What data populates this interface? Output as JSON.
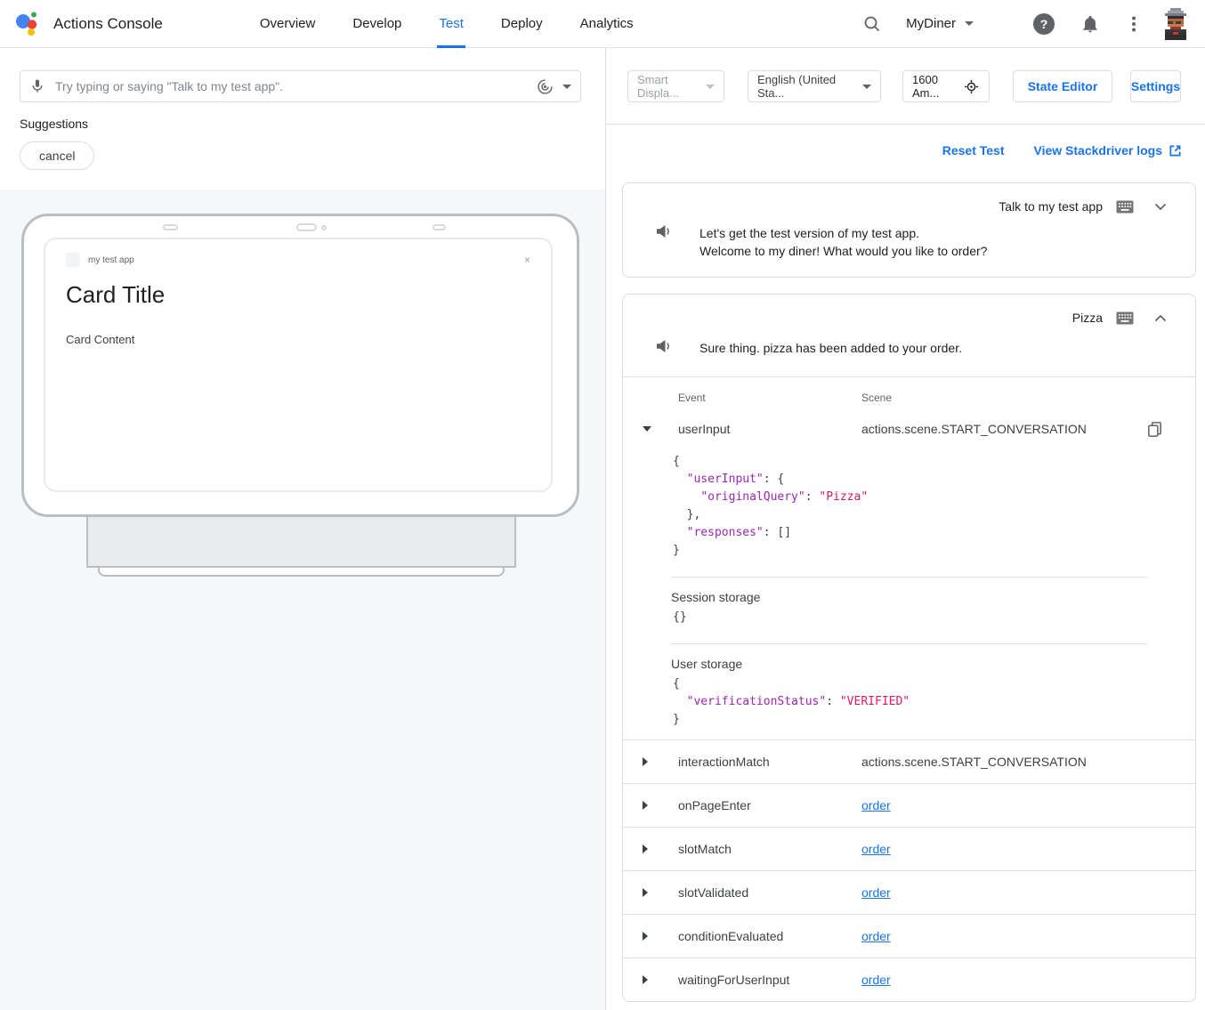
{
  "header": {
    "brand": "Actions Console",
    "tabs": [
      {
        "label": "Overview",
        "active": false
      },
      {
        "label": "Develop",
        "active": false
      },
      {
        "label": "Test",
        "active": true
      },
      {
        "label": "Deploy",
        "active": false
      },
      {
        "label": "Analytics",
        "active": false
      }
    ],
    "project": "MyDiner"
  },
  "colors": {
    "accent": "#1a73e8",
    "json_key": "#9c27b0",
    "json_value": "#d81b60"
  },
  "simulator": {
    "input_placeholder": "Try typing or saying \"Talk to my test app\".",
    "suggestions_label": "Suggestions",
    "suggestion_chips": [
      "cancel"
    ],
    "device": {
      "app_name": "my test app",
      "close": "×",
      "card_title": "Card Title",
      "card_content": "Card Content"
    }
  },
  "toolbar": {
    "surface": "Smart Displa...",
    "language": "English (United Sta...",
    "location": "1600 Am...",
    "state_editor": "State Editor",
    "settings": "Settings"
  },
  "test_actions": {
    "reset": "Reset Test",
    "logs": "View Stackdriver logs"
  },
  "conversation": [
    {
      "query": "Talk to my test app",
      "response_lines": [
        "Let's get the test version of my test app.",
        "Welcome to my diner! What would you like to order?"
      ]
    },
    {
      "query": "Pizza",
      "response_lines": [
        "Sure thing. pizza has been added to your order."
      ]
    }
  ],
  "events": {
    "headers": {
      "event": "Event",
      "scene": "Scene"
    },
    "expanded": {
      "name": "userInput",
      "scene": "actions.scene.START_CONVERSATION",
      "json_lines": [
        [
          [
            "p",
            "{"
          ]
        ],
        [
          [
            "p",
            "  "
          ],
          [
            "k",
            "\"userInput\""
          ],
          [
            "p",
            ": {"
          ]
        ],
        [
          [
            "p",
            "    "
          ],
          [
            "k",
            "\"originalQuery\""
          ],
          [
            "p",
            ": "
          ],
          [
            "v",
            "\"Pizza\""
          ]
        ],
        [
          [
            "p",
            "  },"
          ]
        ],
        [
          [
            "p",
            "  "
          ],
          [
            "k",
            "\"responses\""
          ],
          [
            "p",
            ": []"
          ]
        ],
        [
          [
            "p",
            "}"
          ]
        ]
      ],
      "session_storage_label": "Session storage",
      "session_lines": [
        [
          [
            "p",
            "{}"
          ]
        ]
      ],
      "user_storage_label": "User storage",
      "user_lines": [
        [
          [
            "p",
            "{"
          ]
        ],
        [
          [
            "p",
            "  "
          ],
          [
            "k",
            "\"verificationStatus\""
          ],
          [
            "p",
            ": "
          ],
          [
            "v",
            "\"VERIFIED\""
          ]
        ],
        [
          [
            "p",
            "}"
          ]
        ]
      ]
    },
    "rows": [
      {
        "name": "interactionMatch",
        "scene": "actions.scene.START_CONVERSATION",
        "link": false
      },
      {
        "name": "onPageEnter",
        "scene": "order",
        "link": true
      },
      {
        "name": "slotMatch",
        "scene": "order",
        "link": true
      },
      {
        "name": "slotValidated",
        "scene": "order",
        "link": true
      },
      {
        "name": "conditionEvaluated",
        "scene": "order",
        "link": true
      },
      {
        "name": "waitingForUserInput",
        "scene": "order",
        "link": true
      }
    ]
  }
}
